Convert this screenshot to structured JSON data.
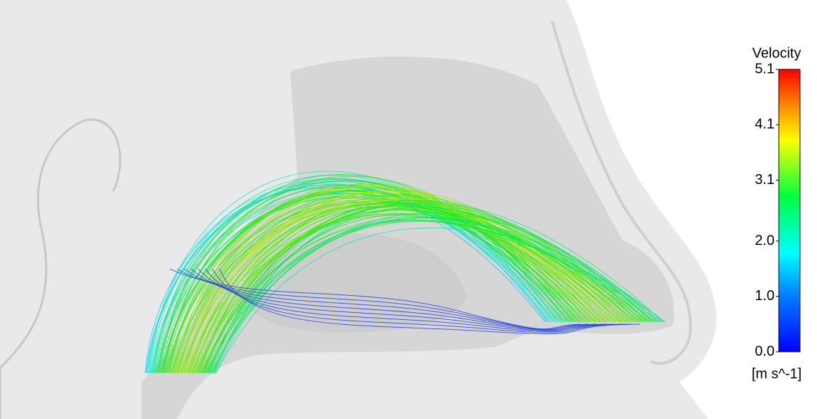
{
  "colorbar": {
    "title": "Velocity",
    "unit": "[m s^-1]",
    "range": [
      0,
      5.1
    ],
    "ticks": [
      {
        "value": 0,
        "label": "0.0"
      },
      {
        "value": 1,
        "label": "1.0"
      },
      {
        "value": 2,
        "label": "2.0"
      },
      3.1,
      4.1,
      5.1
    ]
  }
}
